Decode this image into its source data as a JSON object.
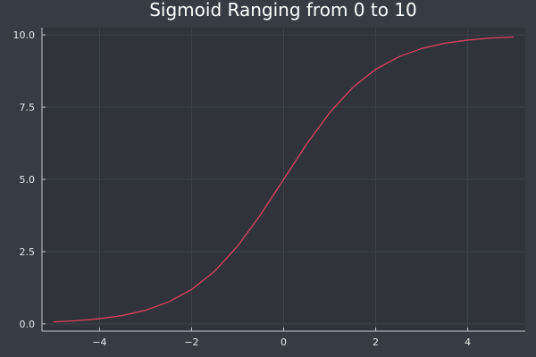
{
  "chart_data": {
    "type": "line",
    "title": "Sigmoid Ranging from 0 to 10",
    "xlabel": "",
    "ylabel": "",
    "xlim": [
      -5.25,
      5.25
    ],
    "ylim": [
      -0.25,
      10.25
    ],
    "xticks": [
      -4,
      -2,
      0,
      2,
      4
    ],
    "xtick_labels": [
      "−4",
      "−2",
      "0",
      "2",
      "4"
    ],
    "yticks": [
      0,
      2.5,
      5,
      7.5,
      10
    ],
    "ytick_labels": [
      "0.0",
      "2.5",
      "5.0",
      "7.5",
      "10.0"
    ],
    "grid": true,
    "legend": "none",
    "series": [
      {
        "color": "#e0405f",
        "x": [
          -5,
          -4.5,
          -4,
          -3.5,
          -3,
          -2.5,
          -2,
          -1.5,
          -1,
          -0.5,
          0,
          0.5,
          1,
          1.5,
          2,
          2.5,
          3,
          3.5,
          4,
          4.5,
          5
        ],
        "y": [
          0.07,
          0.11,
          0.18,
          0.29,
          0.47,
          0.76,
          1.19,
          1.82,
          2.69,
          3.78,
          5.0,
          6.22,
          7.31,
          8.18,
          8.81,
          9.24,
          9.53,
          9.71,
          9.82,
          9.89,
          9.93
        ]
      }
    ],
    "colors": {
      "background": "#363b44",
      "plot_background": "#30343a",
      "grid": "#3d424a",
      "axis": "#c8c8c8",
      "text": "#e8e8e8"
    }
  }
}
